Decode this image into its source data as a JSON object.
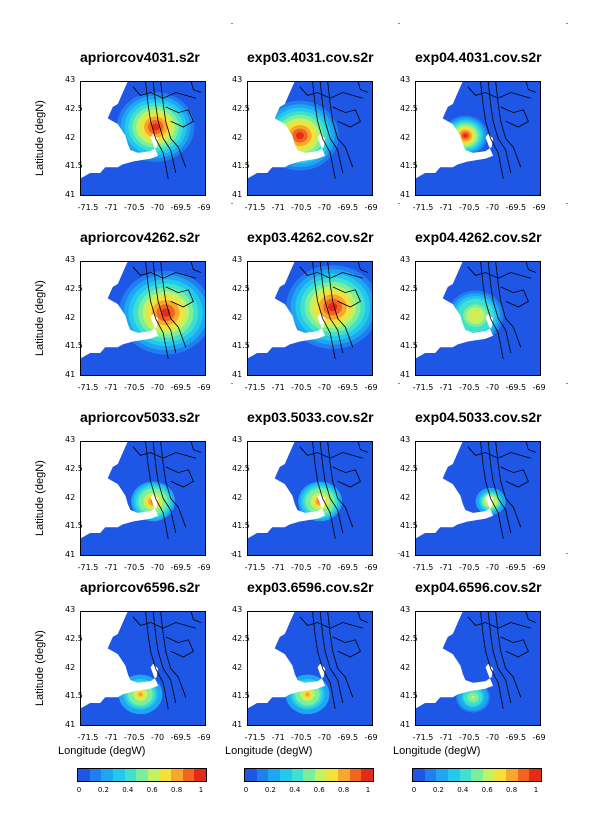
{
  "chart_data": {
    "type": "heatmap",
    "xlabel": "Longitude (degW)",
    "ylabel": "Latitude (degN)",
    "xlim": [
      -71.5,
      -69
    ],
    "ylim": [
      41,
      43
    ],
    "x_ticks": [
      "-71.5",
      "-71",
      "-70.5",
      "-70",
      "-69.5",
      "-69"
    ],
    "y_ticks": [
      "41",
      "41.5",
      "42",
      "42.5",
      "43"
    ],
    "colorbar_ticks": [
      "0",
      "0.2",
      "0.4",
      "0.6",
      "0.8",
      "1"
    ],
    "colorbar_range": [
      0,
      1
    ],
    "colorscale": [
      "#1e56e6",
      "#1f7fef",
      "#1fa6f2",
      "#22c8ee",
      "#3fe0cc",
      "#7bef9b",
      "#c1f264",
      "#f4e23a",
      "#f7a72b",
      "#f26520",
      "#e52a18"
    ],
    "panels": [
      {
        "title": "apriorcov4031.s2r",
        "peak_lon": -70.0,
        "peak_lat": 42.2,
        "peak_value": 1.0,
        "spread": 0.35
      },
      {
        "title": "exp03.4031.cov.s2r",
        "peak_lon": -70.45,
        "peak_lat": 42.05,
        "peak_value": 1.0,
        "spread": 0.35
      },
      {
        "title": "exp04.4031.cov.s2r",
        "peak_lon": -70.5,
        "peak_lat": 42.05,
        "peak_value": 1.0,
        "spread": 0.2
      },
      {
        "title": "apriorcov4262.s2r",
        "peak_lon": -69.8,
        "peak_lat": 42.1,
        "peak_value": 1.0,
        "spread": 0.42
      },
      {
        "title": "exp03.4262.cov.s2r",
        "peak_lon": -69.8,
        "peak_lat": 42.2,
        "peak_value": 1.0,
        "spread": 0.42
      },
      {
        "title": "exp04.4262.cov.s2r",
        "peak_lon": -70.3,
        "peak_lat": 42.05,
        "peak_value": 0.7,
        "spread": 0.28
      },
      {
        "title": "apriorcov5033.s2r",
        "peak_lon": -70.05,
        "peak_lat": 41.95,
        "peak_value": 0.9,
        "spread": 0.22
      },
      {
        "title": "exp03.5033.cov.s2r",
        "peak_lon": -70.05,
        "peak_lat": 41.95,
        "peak_value": 0.9,
        "spread": 0.22
      },
      {
        "title": "exp04.5033.cov.s2r",
        "peak_lon": -70.0,
        "peak_lat": 41.95,
        "peak_value": 0.8,
        "spread": 0.15
      },
      {
        "title": "apriorcov6596.s2r",
        "peak_lon": -70.3,
        "peak_lat": 41.55,
        "peak_value": 0.75,
        "spread": 0.22
      },
      {
        "title": "exp03.6596.cov.s2r",
        "peak_lon": -70.3,
        "peak_lat": 41.55,
        "peak_value": 0.75,
        "spread": 0.22
      },
      {
        "title": "exp04.6596.cov.s2r",
        "peak_lon": -70.35,
        "peak_lat": 41.5,
        "peak_value": 0.6,
        "spread": 0.17
      }
    ]
  }
}
